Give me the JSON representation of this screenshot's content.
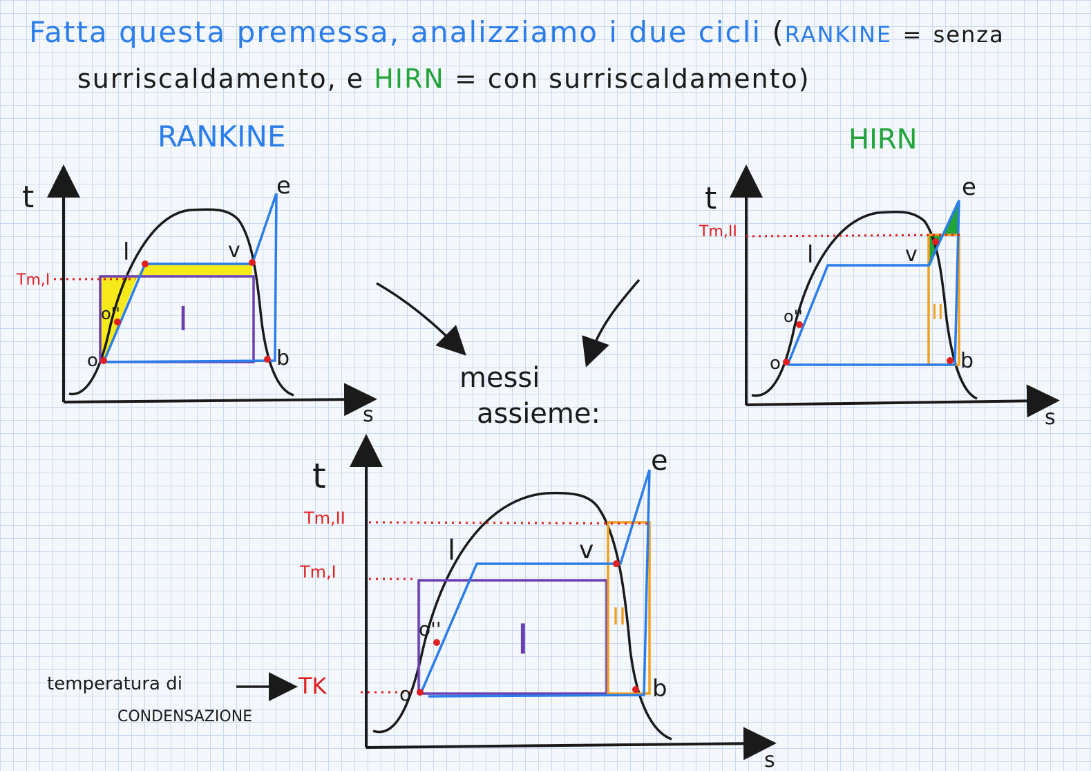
{
  "header": {
    "line1_a": "Fatta questa premessa, analizziamo i due cicli",
    "line1_paren_open": "(",
    "line1_rankine": "RANKINE",
    "line1_eq": "=",
    "line1_senza": "senza",
    "line2_a": "surriscaldamento, e",
    "line2_hirn": "HIRN",
    "line2_b": "= con surriscaldamento)"
  },
  "diagrams": {
    "rankine": {
      "title": "RANKINE",
      "y_axis": "t",
      "x_axis": "s",
      "tm_label": "Tm,I",
      "points": [
        "o",
        "o''",
        "l",
        "v",
        "e",
        "b"
      ],
      "region_label": "I"
    },
    "hirn": {
      "title": "HIRN",
      "y_axis": "t",
      "x_axis": "s",
      "tm_label": "Tm,II",
      "points": [
        "o",
        "o''",
        "l",
        "v",
        "e",
        "b"
      ],
      "region_label": "II"
    },
    "combined": {
      "caption_line1": "messi",
      "caption_line2": "assieme:",
      "y_axis": "t",
      "x_axis": "s",
      "tm2_label": "Tm,II",
      "tm1_label": "Tm,I",
      "tk_label": "TK",
      "points": [
        "o",
        "o''",
        "l",
        "v",
        "e",
        "b"
      ],
      "region1_label": "I",
      "region2_label": "II",
      "note_line1": "temperatura di",
      "note_line2": "CONDENSAZIONE"
    }
  },
  "colors": {
    "ink": "#1a1a1a",
    "blue": "#2b7de9",
    "green": "#22a43a",
    "red": "#e02020",
    "purple": "#6a3fb0",
    "orange": "#f0a020",
    "yellow": "#f6ea1a"
  }
}
